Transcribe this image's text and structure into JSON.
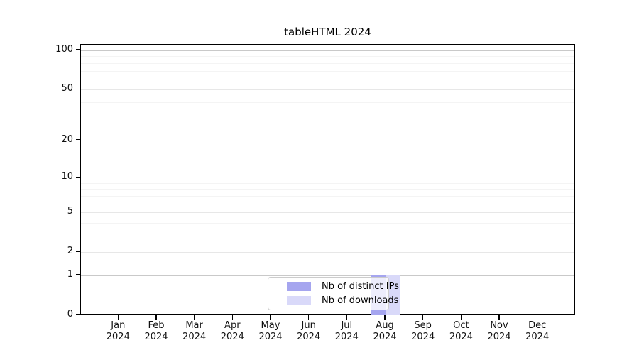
{
  "chart_data": {
    "type": "bar",
    "title": "tableHTML 2024",
    "categories": [
      {
        "month": "Jan",
        "year": "2024"
      },
      {
        "month": "Feb",
        "year": "2024"
      },
      {
        "month": "Mar",
        "year": "2024"
      },
      {
        "month": "Apr",
        "year": "2024"
      },
      {
        "month": "May",
        "year": "2024"
      },
      {
        "month": "Jun",
        "year": "2024"
      },
      {
        "month": "Jul",
        "year": "2024"
      },
      {
        "month": "Aug",
        "year": "2024"
      },
      {
        "month": "Sep",
        "year": "2024"
      },
      {
        "month": "Oct",
        "year": "2024"
      },
      {
        "month": "Nov",
        "year": "2024"
      },
      {
        "month": "Dec",
        "year": "2024"
      }
    ],
    "series": [
      {
        "name": "Nb of distinct IPs",
        "color": "#a5a5ef",
        "values": [
          0,
          0,
          0,
          0,
          0,
          0,
          0,
          1,
          0,
          0,
          0,
          0
        ]
      },
      {
        "name": "Nb of downloads",
        "color": "#d9d9f9",
        "values": [
          0,
          0,
          0,
          0,
          0,
          0,
          0,
          1,
          0,
          0,
          0,
          0
        ]
      }
    ],
    "yscale": "log1p",
    "ylim": [
      0,
      110.5
    ],
    "yticks": [
      0,
      1,
      2,
      5,
      10,
      20,
      50,
      100
    ],
    "decade_gridlines": [
      1,
      10,
      100
    ],
    "minor_gridlines": [
      3,
      4,
      6,
      7,
      8,
      9,
      30,
      40,
      60,
      70,
      80,
      90
    ],
    "xlabel": "",
    "ylabel": "",
    "grid": "horizontal",
    "legend_position": "bottom-center"
  },
  "colors": {
    "axis": "#000000",
    "gridline_decade": "#c9c9c9",
    "gridline_major": "#e7e7e7",
    "gridline_minor": "#f4f4f4",
    "background": "#ffffff"
  }
}
